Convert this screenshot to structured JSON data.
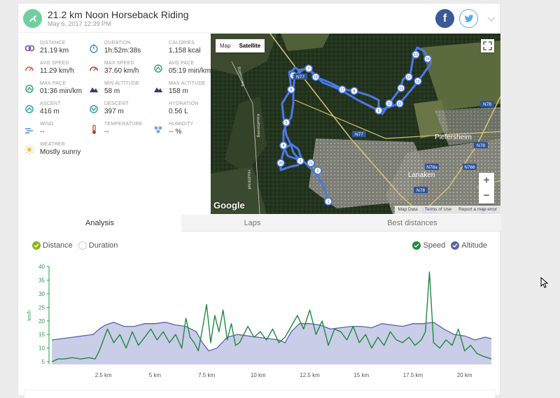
{
  "activity": {
    "title": "21.2 km Noon Horseback Riding",
    "date": "May 6, 2017 12:39 PM"
  },
  "share": {
    "facebook_glyph": "f",
    "facebook_color": "#3b5998",
    "twitter_color": "#55acee"
  },
  "stats": [
    {
      "id": "distance",
      "label": "DISTANCE",
      "value": "21.19 km",
      "icon": "distance-icon",
      "color": "#7b4aa8"
    },
    {
      "id": "duration",
      "label": "DURATION",
      "value": "1h:52m:38s",
      "icon": "stopwatch-icon",
      "color": "#3a8fd0"
    },
    {
      "id": "calories",
      "label": "CALORIES",
      "value": "1,158 kcal",
      "icon": "flame-icon",
      "color": "#e85a2a"
    },
    {
      "id": "avg-speed",
      "label": "AVG SPEED",
      "value": "11.29 km/h",
      "icon": "gauge-icon",
      "color": "#e8503a"
    },
    {
      "id": "max-speed",
      "label": "MAX SPEED",
      "value": "37.60 km/h",
      "icon": "gauge-icon",
      "color": "#c0392b"
    },
    {
      "id": "avg-pace",
      "label": "AVG PACE",
      "value": "05:19 min/km",
      "icon": "pace-icon",
      "color": "#2aa36b"
    },
    {
      "id": "max-pace",
      "label": "MAX PACE",
      "value": "01:36 min/km",
      "icon": "pace-icon",
      "color": "#2aa36b"
    },
    {
      "id": "min-altitude",
      "label": "MIN ALTITUDE",
      "value": "58 m",
      "icon": "mountain-icon",
      "color": "#2c3e73"
    },
    {
      "id": "max-altitude",
      "label": "MAX ALTITUDE",
      "value": "158 m",
      "icon": "mountain-icon",
      "color": "#2c3e73"
    },
    {
      "id": "ascent",
      "label": "ASCENT",
      "value": "416 m",
      "icon": "ascent-icon",
      "color": "#2a9bb3"
    },
    {
      "id": "descent",
      "label": "DESCENT",
      "value": "397 m",
      "icon": "descent-icon",
      "color": "#2a9bb3"
    },
    {
      "id": "hydration",
      "label": "HYDRATION",
      "value": "0.56 L",
      "icon": "drops-icon",
      "color": "#7aa7e8"
    },
    {
      "id": "wind",
      "label": "WIND",
      "value": "--",
      "icon": "wind-icon",
      "color": "#5a8fd0"
    },
    {
      "id": "temperature",
      "label": "TEMPERATURE",
      "value": "--",
      "icon": "thermometer-icon",
      "color": "#c0392b"
    },
    {
      "id": "humidity",
      "label": "HUMIDITY",
      "value": "-- %",
      "icon": "humidity-icon",
      "color": "#7aa7e8"
    },
    {
      "id": "weather",
      "label": "WEATHER",
      "value": "Mostly sunny",
      "icon": "sun-icon",
      "color": "#f2c14e"
    }
  ],
  "map": {
    "toggle_map": "Map",
    "toggle_satellite": "Satellite",
    "logo": "Google",
    "footer": [
      "Map Data",
      "Terms of Use",
      "Report a map error"
    ],
    "zoom_in": "+",
    "zoom_out": "−",
    "place_labels": [
      {
        "text": "Piefersheim",
        "kind": "town"
      },
      {
        "text": "Lanaken",
        "kind": "town"
      },
      {
        "text": "N77",
        "kind": "road"
      },
      {
        "text": "N77",
        "kind": "road"
      },
      {
        "text": "N77",
        "kind": "road"
      },
      {
        "text": "N78",
        "kind": "road"
      },
      {
        "text": "N78",
        "kind": "road"
      },
      {
        "text": "N78",
        "kind": "road"
      },
      {
        "text": "N78",
        "kind": "road"
      },
      {
        "text": "N78a",
        "kind": "road"
      },
      {
        "text": "N766",
        "kind": "road"
      },
      {
        "text": "Kiewitseweg",
        "kind": "street"
      },
      {
        "text": "Roelerweg",
        "kind": "street"
      },
      {
        "text": "Houtstraat",
        "kind": "street"
      }
    ],
    "km_markers": [
      "1",
      "2",
      "3",
      "4",
      "5",
      "6",
      "7",
      "8",
      "9",
      "10",
      "11",
      "12",
      "13",
      "14",
      "15",
      "16",
      "17",
      "18",
      "19",
      "20",
      "21"
    ]
  },
  "tabs": [
    {
      "label": "Analysis",
      "active": true
    },
    {
      "label": "Laps",
      "active": false
    },
    {
      "label": "Best distances",
      "active": false
    }
  ],
  "legend": {
    "distance": {
      "label": "Distance",
      "checked": true,
      "color": "#8cb31e"
    },
    "duration": {
      "label": "Duration",
      "checked": false
    },
    "speed": {
      "label": "Speed",
      "checked": true,
      "color": "#1f8a3e"
    },
    "altitude": {
      "label": "Altitude",
      "checked": true,
      "color": "#5a62a8"
    }
  },
  "chart_data": {
    "type": "line",
    "ylabel": "km/h",
    "yticks": [
      5,
      10,
      15,
      20,
      25,
      30,
      35,
      40
    ],
    "ylim": [
      4,
      40
    ],
    "xlim": [
      0,
      21.3
    ],
    "xticks": [
      "2.5 km",
      "5 km",
      "7.5 km",
      "10 km",
      "12.5 km",
      "15 km",
      "17.5 km",
      "20 km"
    ],
    "xtick_values": [
      2.5,
      5,
      7.5,
      10,
      12.5,
      15,
      17.5,
      20
    ],
    "series": [
      {
        "name": "Altitude",
        "kind": "area",
        "color": "#5a62a8",
        "fill": "#c9cde8",
        "x": [
          0,
          0.5,
          1,
          1.5,
          2,
          2.3,
          2.6,
          3,
          3.5,
          4,
          4.5,
          5,
          5.5,
          6,
          6.5,
          7,
          7.3,
          7.6,
          8,
          8.5,
          9,
          9.5,
          10,
          10.5,
          11,
          11.3,
          11.6,
          12,
          12.5,
          13,
          13.5,
          14,
          14.5,
          15,
          15.5,
          16,
          16.5,
          17,
          17.5,
          18,
          18.5,
          19,
          19.5,
          20,
          20.5,
          21,
          21.3
        ],
        "values": [
          13,
          13.5,
          14,
          14.5,
          15,
          17,
          18.5,
          19.5,
          18,
          18,
          19,
          19,
          19.5,
          18.5,
          18,
          16,
          12,
          9,
          10,
          14,
          15,
          14.5,
          14,
          13.5,
          13,
          12,
          16,
          19,
          19,
          18.5,
          17,
          17.5,
          18,
          18,
          17.5,
          19,
          18.5,
          18,
          19,
          19,
          19.5,
          17,
          15,
          14.5,
          13,
          14,
          13.5
        ]
      },
      {
        "name": "Speed",
        "kind": "line",
        "color": "#1f8a3e",
        "x": [
          0,
          0.3,
          0.6,
          1,
          1.4,
          1.8,
          2.1,
          2.3,
          2.5,
          2.7,
          3,
          3.3,
          3.6,
          3.9,
          4.2,
          4.5,
          4.8,
          5.1,
          5.4,
          5.7,
          6,
          6.3,
          6.5,
          6.7,
          6.9,
          7.1,
          7.3,
          7.5,
          7.7,
          7.9,
          8.1,
          8.3,
          8.5,
          8.7,
          8.9,
          9.1,
          9.3,
          9.5,
          9.8,
          10.1,
          10.4,
          10.7,
          11,
          11.3,
          11.6,
          11.9,
          12.2,
          12.5,
          12.8,
          13.1,
          13.4,
          13.7,
          14,
          14.3,
          14.6,
          14.9,
          15.2,
          15.5,
          15.8,
          16.1,
          16.4,
          16.7,
          17,
          17.3,
          17.6,
          17.9,
          18.1,
          18.3,
          18.5,
          18.8,
          19.1,
          19.4,
          19.7,
          20,
          20.3,
          20.6,
          20.9,
          21.3
        ],
        "values": [
          5,
          6,
          6,
          6.5,
          6,
          6.5,
          6,
          9,
          13,
          17,
          12,
          15,
          10,
          16,
          11,
          14,
          17,
          13,
          16,
          12,
          15,
          10,
          21,
          14,
          12,
          9,
          17,
          26,
          12,
          22,
          16,
          24,
          13,
          19,
          11,
          12,
          15,
          18,
          14,
          16,
          13,
          17,
          12,
          14,
          18,
          22,
          17,
          24,
          15,
          20,
          11,
          17,
          16,
          13,
          18,
          12,
          15,
          10,
          14,
          11,
          16,
          13,
          12,
          14,
          11,
          13,
          16,
          38,
          12,
          10,
          13,
          11,
          17,
          9,
          11,
          8,
          7,
          6
        ]
      }
    ]
  }
}
